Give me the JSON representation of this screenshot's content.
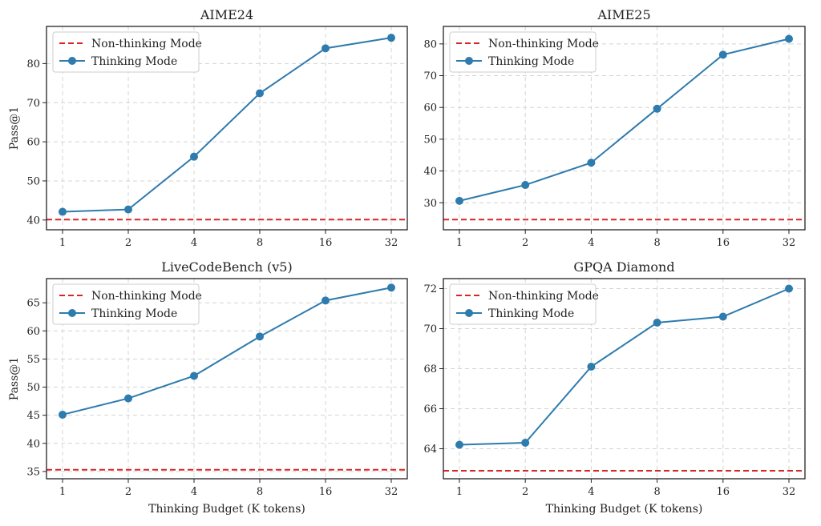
{
  "colors": {
    "thinking": "#2e7bad",
    "non_thinking": "#d62728"
  },
  "chart_data": [
    {
      "type": "line",
      "title": "AIME24",
      "xlabel": "",
      "ylabel": "Pass@1",
      "x_tick_labels": [
        "1",
        "2",
        "4",
        "8",
        "16",
        "32"
      ],
      "yticks": [
        40,
        50,
        60,
        70,
        80
      ],
      "ylim": [
        37.5,
        89.5
      ],
      "legend": "top-left",
      "series": [
        {
          "name": "Non-thinking Mode",
          "style": "dashed",
          "values": [
            40.1
          ]
        },
        {
          "name": "Thinking Mode",
          "style": "solid-marker",
          "values": [
            42.1,
            42.7,
            56.2,
            72.4,
            83.9,
            86.6
          ]
        }
      ]
    },
    {
      "type": "line",
      "title": "AIME25",
      "xlabel": "",
      "ylabel": "",
      "x_tick_labels": [
        "1",
        "2",
        "4",
        "8",
        "16",
        "32"
      ],
      "yticks": [
        30,
        40,
        50,
        60,
        70,
        80
      ],
      "ylim": [
        21.5,
        85.5
      ],
      "legend": "top-left",
      "series": [
        {
          "name": "Non-thinking Mode",
          "style": "dashed",
          "values": [
            24.7
          ]
        },
        {
          "name": "Thinking Mode",
          "style": "solid-marker",
          "values": [
            30.6,
            35.6,
            42.6,
            59.6,
            76.6,
            81.6
          ]
        }
      ]
    },
    {
      "type": "line",
      "title": "LiveCodeBench (v5)",
      "xlabel": "Thinking Budget (K tokens)",
      "ylabel": "Pass@1",
      "x_tick_labels": [
        "1",
        "2",
        "4",
        "8",
        "16",
        "32"
      ],
      "yticks": [
        35,
        40,
        45,
        50,
        55,
        60,
        65
      ],
      "ylim": [
        33.7,
        69.3
      ],
      "legend": "top-left",
      "series": [
        {
          "name": "Non-thinking Mode",
          "style": "dashed",
          "values": [
            35.3
          ]
        },
        {
          "name": "Thinking Mode",
          "style": "solid-marker",
          "values": [
            45.1,
            48.0,
            52.0,
            59.0,
            65.4,
            67.7
          ]
        }
      ]
    },
    {
      "type": "line",
      "title": "GPQA Diamond",
      "xlabel": "Thinking Budget (K tokens)",
      "ylabel": "",
      "x_tick_labels": [
        "1",
        "2",
        "4",
        "8",
        "16",
        "32"
      ],
      "yticks": [
        64,
        66,
        68,
        70,
        72
      ],
      "ylim": [
        62.5,
        72.5
      ],
      "legend": "top-left",
      "series": [
        {
          "name": "Non-thinking Mode",
          "style": "dashed",
          "values": [
            62.9
          ]
        },
        {
          "name": "Thinking Mode",
          "style": "solid-marker",
          "values": [
            64.2,
            64.3,
            68.1,
            70.3,
            70.6,
            72.0
          ]
        }
      ]
    }
  ]
}
